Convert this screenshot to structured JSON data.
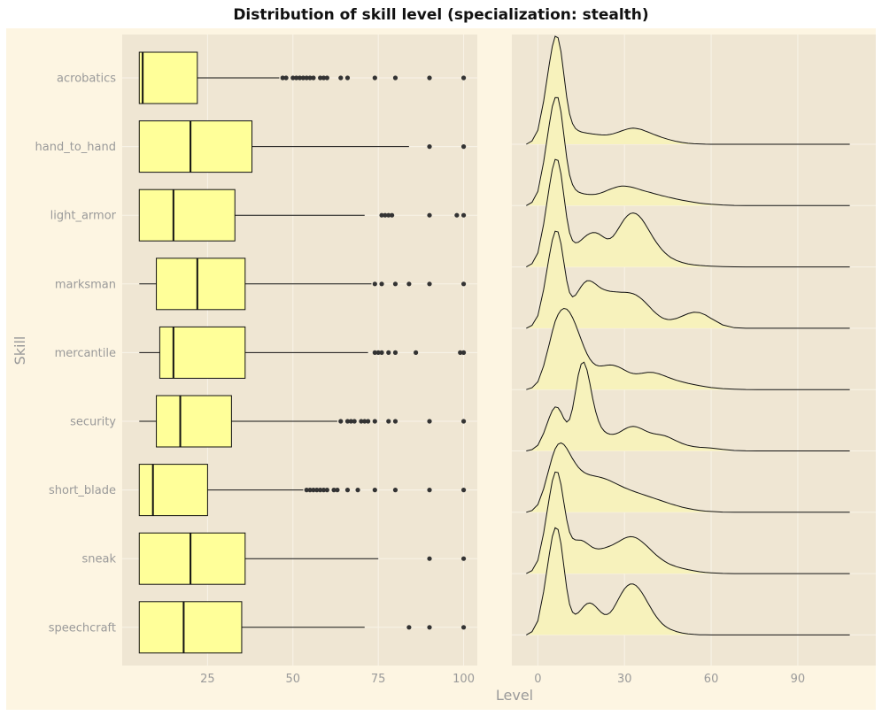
{
  "title": "Distribution of skill level (specialization: stealth)",
  "colors": {
    "outer_background": "#fdf5e2",
    "panel_background": "#efe6d3",
    "grid": "#f8f3e8",
    "box_fill": "#ffff99",
    "ridge_fill": "#f7f2bc",
    "line": "#111111",
    "outlier": "#333333",
    "text": "#9a9a9a"
  },
  "chart_data": [
    {
      "type": "box",
      "ylabel": "Skill",
      "xlabel": "",
      "xlim": [
        0,
        104
      ],
      "xticks": [
        25,
        50,
        75,
        100
      ],
      "grid": true,
      "categories": [
        "acrobatics",
        "hand_to_hand",
        "light_armor",
        "marksman",
        "mercantile",
        "security",
        "short_blade",
        "sneak",
        "speechcraft"
      ],
      "boxes": [
        {
          "skill": "acrobatics",
          "whisker_low": 5,
          "q1": 5,
          "median": 6,
          "q3": 22,
          "whisker_high": 46,
          "outliers": [
            47,
            48,
            50,
            51,
            52,
            53,
            54,
            55,
            56,
            58,
            59,
            60,
            64,
            66,
            74,
            80,
            90,
            100
          ]
        },
        {
          "skill": "hand_to_hand",
          "whisker_low": 5,
          "q1": 5,
          "median": 20,
          "q3": 38,
          "whisker_high": 84,
          "outliers": [
            90,
            100
          ]
        },
        {
          "skill": "light_armor",
          "whisker_low": 5,
          "q1": 5,
          "median": 15,
          "q3": 33,
          "whisker_high": 71,
          "outliers": [
            76,
            77,
            78,
            79,
            90,
            98,
            100
          ]
        },
        {
          "skill": "marksman",
          "whisker_low": 5,
          "q1": 10,
          "median": 22,
          "q3": 36,
          "whisker_high": 73,
          "outliers": [
            74,
            76,
            80,
            84,
            90,
            100
          ]
        },
        {
          "skill": "mercantile",
          "whisker_low": 5,
          "q1": 11,
          "median": 15,
          "q3": 36,
          "whisker_high": 72,
          "outliers": [
            74,
            75,
            76,
            78,
            80,
            86,
            99,
            100
          ]
        },
        {
          "skill": "security",
          "whisker_low": 5,
          "q1": 10,
          "median": 17,
          "q3": 32,
          "whisker_high": 63,
          "outliers": [
            64,
            66,
            67,
            68,
            70,
            71,
            72,
            74,
            78,
            80,
            90,
            100
          ]
        },
        {
          "skill": "short_blade",
          "whisker_low": 5,
          "q1": 5,
          "median": 9,
          "q3": 25,
          "whisker_high": 53,
          "outliers": [
            54,
            55,
            56,
            57,
            58,
            59,
            60,
            62,
            63,
            66,
            69,
            74,
            80,
            90,
            100
          ]
        },
        {
          "skill": "sneak",
          "whisker_low": 5,
          "q1": 5,
          "median": 20,
          "q3": 36,
          "whisker_high": 75,
          "outliers": [
            90,
            100
          ]
        },
        {
          "skill": "speechcraft",
          "whisker_low": 5,
          "q1": 5,
          "median": 18,
          "q3": 35,
          "whisker_high": 71,
          "outliers": [
            84,
            90,
            100
          ]
        }
      ]
    },
    {
      "type": "ridgeline",
      "xlabel": "Level",
      "xlim": [
        -9,
        117
      ],
      "xticks": [
        0,
        30,
        60,
        90
      ],
      "grid": true,
      "x": [
        -4,
        -2,
        0,
        2,
        4,
        5,
        6,
        7,
        8,
        9,
        10,
        11,
        12,
        13,
        14,
        15,
        16,
        17,
        18,
        19,
        20,
        21,
        22,
        23,
        24,
        25,
        26,
        27,
        28,
        29,
        30,
        31,
        32,
        33,
        34,
        35,
        36,
        37,
        38,
        39,
        40,
        41,
        42,
        43,
        44,
        45,
        46,
        48,
        50,
        52,
        54,
        56,
        58,
        60,
        64,
        68,
        72,
        76,
        80,
        85,
        90,
        95,
        100,
        105,
        108
      ],
      "series": [
        {
          "skill": "acrobatics",
          "values": [
            0.0,
            0.03,
            0.13,
            0.398,
            0.748,
            0.906,
            1.0,
            0.986,
            0.857,
            0.649,
            0.435,
            0.28,
            0.192,
            0.147,
            0.126,
            0.115,
            0.108,
            0.103,
            0.099,
            0.095,
            0.092,
            0.089,
            0.087,
            0.086,
            0.087,
            0.091,
            0.097,
            0.105,
            0.114,
            0.124,
            0.133,
            0.141,
            0.147,
            0.149,
            0.147,
            0.142,
            0.135,
            0.125,
            0.115,
            0.104,
            0.093,
            0.083,
            0.073,
            0.063,
            0.055,
            0.047,
            0.039,
            0.026,
            0.016,
            0.009,
            0.005,
            0.003,
            0.001,
            0.0,
            0.0,
            0.0,
            0.0,
            0.0,
            0.0,
            0.0,
            0.0,
            0.0,
            0.0,
            0.0,
            0.0
          ]
        },
        {
          "skill": "hand_to_hand",
          "values": [
            0.0,
            0.03,
            0.132,
            0.403,
            0.758,
            0.918,
            1.0,
            0.999,
            0.868,
            0.657,
            0.442,
            0.284,
            0.195,
            0.149,
            0.127,
            0.116,
            0.109,
            0.105,
            0.103,
            0.103,
            0.105,
            0.111,
            0.119,
            0.129,
            0.14,
            0.151,
            0.161,
            0.17,
            0.177,
            0.18,
            0.181,
            0.178,
            0.174,
            0.167,
            0.16,
            0.152,
            0.143,
            0.135,
            0.128,
            0.121,
            0.113,
            0.106,
            0.099,
            0.092,
            0.086,
            0.079,
            0.073,
            0.061,
            0.05,
            0.04,
            0.031,
            0.023,
            0.017,
            0.012,
            0.006,
            0.002,
            0.001,
            0.0,
            0.0,
            0.0,
            0.0,
            0.0,
            0.0,
            0.0,
            0.0
          ]
        },
        {
          "skill": "light_armor",
          "values": [
            0.0,
            0.03,
            0.13,
            0.396,
            0.745,
            0.904,
            0.996,
            0.986,
            0.862,
            0.663,
            0.46,
            0.316,
            0.245,
            0.223,
            0.228,
            0.248,
            0.272,
            0.294,
            0.31,
            0.318,
            0.317,
            0.307,
            0.29,
            0.272,
            0.26,
            0.263,
            0.283,
            0.317,
            0.36,
            0.404,
            0.444,
            0.475,
            0.494,
            0.5,
            0.493,
            0.473,
            0.443,
            0.404,
            0.36,
            0.315,
            0.27,
            0.229,
            0.192,
            0.159,
            0.131,
            0.108,
            0.088,
            0.06,
            0.041,
            0.028,
            0.02,
            0.014,
            0.01,
            0.007,
            0.003,
            0.001,
            0.0,
            0.0,
            0.0,
            0.0,
            0.0,
            0.0,
            0.0,
            0.0,
            0.0
          ]
        },
        {
          "skill": "marksman",
          "values": [
            0.0,
            0.027,
            0.117,
            0.358,
            0.674,
            0.817,
            0.899,
            0.893,
            0.784,
            0.613,
            0.442,
            0.33,
            0.292,
            0.306,
            0.344,
            0.387,
            0.42,
            0.439,
            0.44,
            0.428,
            0.409,
            0.388,
            0.37,
            0.357,
            0.348,
            0.343,
            0.339,
            0.337,
            0.335,
            0.334,
            0.333,
            0.331,
            0.327,
            0.32,
            0.308,
            0.291,
            0.27,
            0.245,
            0.217,
            0.189,
            0.161,
            0.136,
            0.115,
            0.098,
            0.087,
            0.081,
            0.08,
            0.091,
            0.113,
            0.135,
            0.148,
            0.145,
            0.124,
            0.091,
            0.031,
            0.005,
            0.0,
            0.0,
            0.0,
            0.0,
            0.0,
            0.0,
            0.0,
            0.0,
            0.0
          ]
        },
        {
          "skill": "mercantile",
          "values": [
            0.0,
            0.017,
            0.072,
            0.22,
            0.426,
            0.538,
            0.631,
            0.695,
            0.735,
            0.752,
            0.745,
            0.716,
            0.668,
            0.606,
            0.536,
            0.463,
            0.394,
            0.333,
            0.284,
            0.25,
            0.229,
            0.22,
            0.219,
            0.222,
            0.226,
            0.228,
            0.226,
            0.219,
            0.209,
            0.196,
            0.181,
            0.167,
            0.156,
            0.149,
            0.146,
            0.148,
            0.152,
            0.156,
            0.159,
            0.16,
            0.158,
            0.152,
            0.145,
            0.135,
            0.125,
            0.115,
            0.105,
            0.086,
            0.071,
            0.058,
            0.047,
            0.036,
            0.027,
            0.019,
            0.009,
            0.004,
            0.001,
            0.0,
            0.0,
            0.0,
            0.0,
            0.0,
            0.0,
            0.0,
            0.0
          ]
        },
        {
          "skill": "security",
          "values": [
            0.0,
            0.012,
            0.053,
            0.164,
            0.311,
            0.374,
            0.407,
            0.4,
            0.358,
            0.302,
            0.267,
            0.292,
            0.392,
            0.546,
            0.702,
            0.805,
            0.822,
            0.752,
            0.626,
            0.487,
            0.366,
            0.277,
            0.218,
            0.183,
            0.164,
            0.155,
            0.154,
            0.159,
            0.17,
            0.185,
            0.201,
            0.215,
            0.224,
            0.227,
            0.224,
            0.215,
            0.203,
            0.19,
            0.178,
            0.168,
            0.161,
            0.156,
            0.152,
            0.147,
            0.14,
            0.13,
            0.118,
            0.093,
            0.069,
            0.051,
            0.04,
            0.034,
            0.03,
            0.026,
            0.014,
            0.004,
            0.001,
            0.0,
            0.0,
            0.0,
            0.0,
            0.0,
            0.0,
            0.0,
            0.0
          ]
        },
        {
          "skill": "short_blade",
          "values": [
            0.0,
            0.016,
            0.071,
            0.217,
            0.414,
            0.513,
            0.587,
            0.63,
            0.643,
            0.628,
            0.592,
            0.545,
            0.497,
            0.454,
            0.418,
            0.39,
            0.37,
            0.356,
            0.346,
            0.339,
            0.334,
            0.328,
            0.321,
            0.313,
            0.303,
            0.292,
            0.279,
            0.266,
            0.253,
            0.24,
            0.228,
            0.217,
            0.206,
            0.196,
            0.186,
            0.177,
            0.168,
            0.159,
            0.15,
            0.141,
            0.132,
            0.123,
            0.114,
            0.105,
            0.096,
            0.087,
            0.078,
            0.062,
            0.047,
            0.035,
            0.025,
            0.017,
            0.011,
            0.007,
            0.002,
            0.0,
            0.0,
            0.0,
            0.0,
            0.0,
            0.0,
            0.0,
            0.0,
            0.0,
            0.0
          ]
        },
        {
          "skill": "sneak",
          "values": [
            0.0,
            0.028,
            0.123,
            0.375,
            0.706,
            0.858,
            0.941,
            0.935,
            0.825,
            0.66,
            0.498,
            0.384,
            0.328,
            0.312,
            0.311,
            0.309,
            0.298,
            0.28,
            0.26,
            0.243,
            0.232,
            0.229,
            0.231,
            0.237,
            0.246,
            0.256,
            0.268,
            0.282,
            0.297,
            0.313,
            0.327,
            0.337,
            0.342,
            0.34,
            0.331,
            0.316,
            0.296,
            0.273,
            0.248,
            0.222,
            0.197,
            0.172,
            0.15,
            0.13,
            0.112,
            0.097,
            0.084,
            0.064,
            0.049,
            0.037,
            0.026,
            0.017,
            0.011,
            0.007,
            0.002,
            0.0,
            0.0,
            0.0,
            0.0,
            0.0,
            0.0,
            0.0,
            0.0,
            0.0,
            0.0
          ]
        },
        {
          "skill": "speechcraft",
          "values": [
            0.0,
            0.03,
            0.131,
            0.4,
            0.751,
            0.911,
            0.993,
            0.976,
            0.845,
            0.64,
            0.431,
            0.284,
            0.211,
            0.192,
            0.206,
            0.235,
            0.266,
            0.289,
            0.296,
            0.286,
            0.263,
            0.234,
            0.207,
            0.19,
            0.189,
            0.206,
            0.24,
            0.286,
            0.337,
            0.386,
            0.427,
            0.456,
            0.471,
            0.471,
            0.457,
            0.43,
            0.393,
            0.349,
            0.302,
            0.255,
            0.21,
            0.17,
            0.135,
            0.106,
            0.083,
            0.065,
            0.051,
            0.031,
            0.018,
            0.01,
            0.005,
            0.002,
            0.001,
            0.0,
            0.0,
            0.0,
            0.0,
            0.0,
            0.0,
            0.0,
            0.0,
            0.0,
            0.0,
            0.0,
            0.0
          ]
        }
      ]
    }
  ]
}
